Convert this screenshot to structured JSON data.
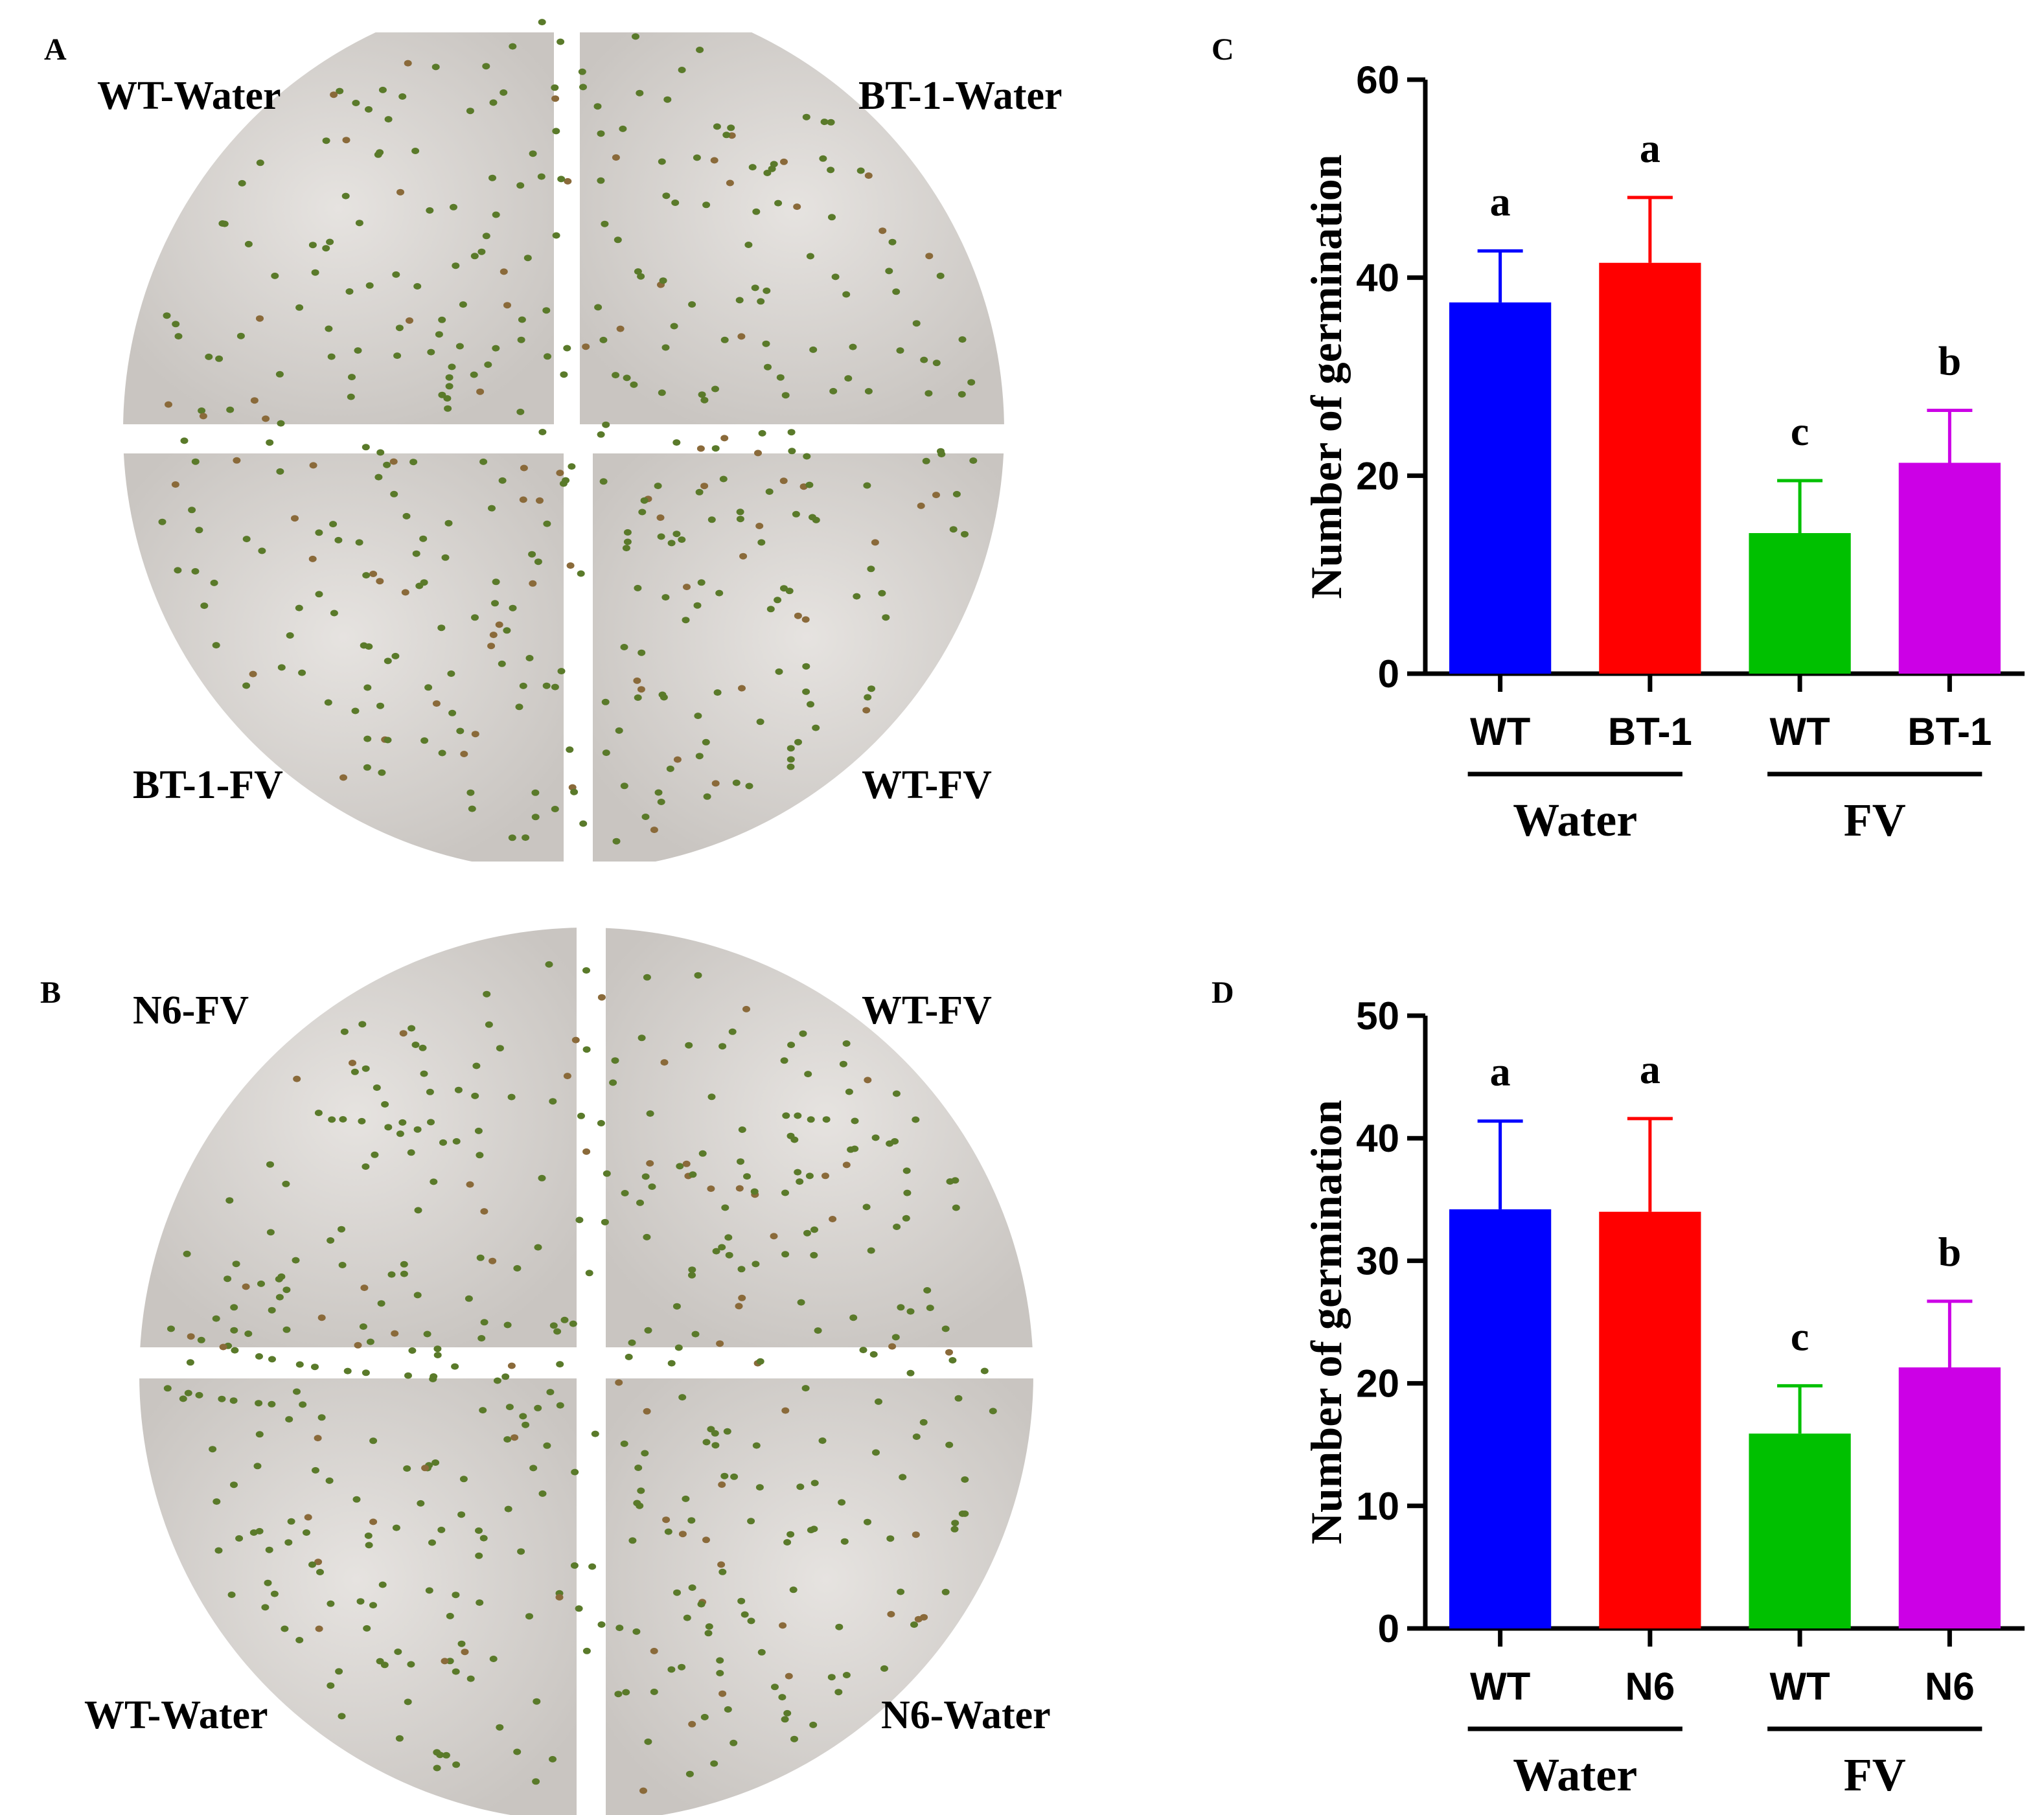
{
  "panels": {
    "A": {
      "letter": "A",
      "plate_labels": [
        "WT-Water",
        "BT-1-Water",
        "BT-1-FV",
        "WT-FV"
      ]
    },
    "B": {
      "letter": "B",
      "plate_labels": [
        "N6-FV",
        "WT-FV",
        "WT-Water",
        "N6-Water"
      ]
    }
  },
  "colors": {
    "wt_water": "#0000FF",
    "mutant_water": "#FF0000",
    "wt_fv": "#00C000",
    "mutant_fv": "#CC00E6",
    "plate": "#d9d6d3",
    "seedling": "#5a7a2a"
  },
  "chart_data": [
    {
      "panel": "C",
      "type": "bar",
      "ylabel": "Number of germination",
      "ylim": [
        0,
        60
      ],
      "yticks": [
        0,
        20,
        40,
        60
      ],
      "categories": [
        "WT",
        "BT-1",
        "WT",
        "BT-1"
      ],
      "groups": [
        "Water",
        "FV"
      ],
      "values": [
        37.5,
        41.5,
        14.2,
        21.3
      ],
      "errors": [
        5.2,
        6.6,
        5.3,
        5.3
      ],
      "significance": [
        "a",
        "a",
        "c",
        "b"
      ],
      "bar_colors": [
        "#0000FF",
        "#FF0000",
        "#00C000",
        "#CC00E6"
      ]
    },
    {
      "panel": "D",
      "type": "bar",
      "ylabel": "Number of germination",
      "ylim": [
        0,
        50
      ],
      "yticks": [
        0,
        10,
        20,
        30,
        40,
        50
      ],
      "categories": [
        "WT",
        "N6",
        "WT",
        "N6"
      ],
      "groups": [
        "Water",
        "FV"
      ],
      "values": [
        34.2,
        34.0,
        15.9,
        21.3
      ],
      "errors": [
        7.2,
        7.6,
        3.9,
        5.4
      ],
      "significance": [
        "a",
        "a",
        "c",
        "b"
      ],
      "bar_colors": [
        "#0000FF",
        "#FF0000",
        "#00C000",
        "#CC00E6"
      ]
    }
  ]
}
